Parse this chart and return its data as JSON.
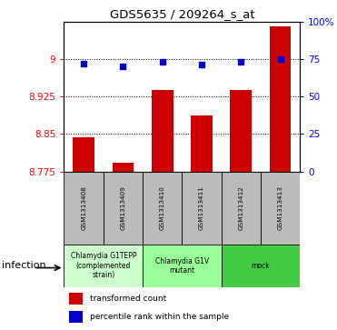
{
  "title": "GDS5635 / 209264_s_at",
  "samples": [
    "GSM1313408",
    "GSM1313409",
    "GSM1313410",
    "GSM1313411",
    "GSM1313412",
    "GSM1313413"
  ],
  "bar_values": [
    8.843,
    8.793,
    8.938,
    8.888,
    8.938,
    9.065
  ],
  "dot_values": [
    72,
    70,
    73,
    71,
    73,
    75
  ],
  "ylim_left": [
    8.775,
    9.075
  ],
  "ylim_right": [
    0,
    100
  ],
  "yticks_left": [
    8.775,
    8.85,
    8.925,
    9.0
  ],
  "yticks_right": [
    0,
    25,
    50,
    75,
    100
  ],
  "ytick_labels_left": [
    "8.775",
    "8.85",
    "8.925",
    "9"
  ],
  "ytick_labels_right": [
    "0",
    "25",
    "50",
    "75",
    "100%"
  ],
  "bar_color": "#cc0000",
  "dot_color": "#0000cc",
  "bar_bottom": 8.775,
  "groups": [
    {
      "label": "Chlamydia G1TEPP\n(complemented\nstrain)",
      "color": "#ccffcc",
      "start": 0,
      "end": 1
    },
    {
      "label": "Chlamydia G1V\nmutant",
      "color": "#99ff99",
      "start": 2,
      "end": 3
    },
    {
      "label": "mock",
      "color": "#44cc44",
      "start": 4,
      "end": 5
    }
  ],
  "factor_label": "infection",
  "legend_bar_label": "transformed count",
  "legend_dot_label": "percentile rank within the sample",
  "label_area_bg": "#bbbbbb",
  "n_samples": 6
}
